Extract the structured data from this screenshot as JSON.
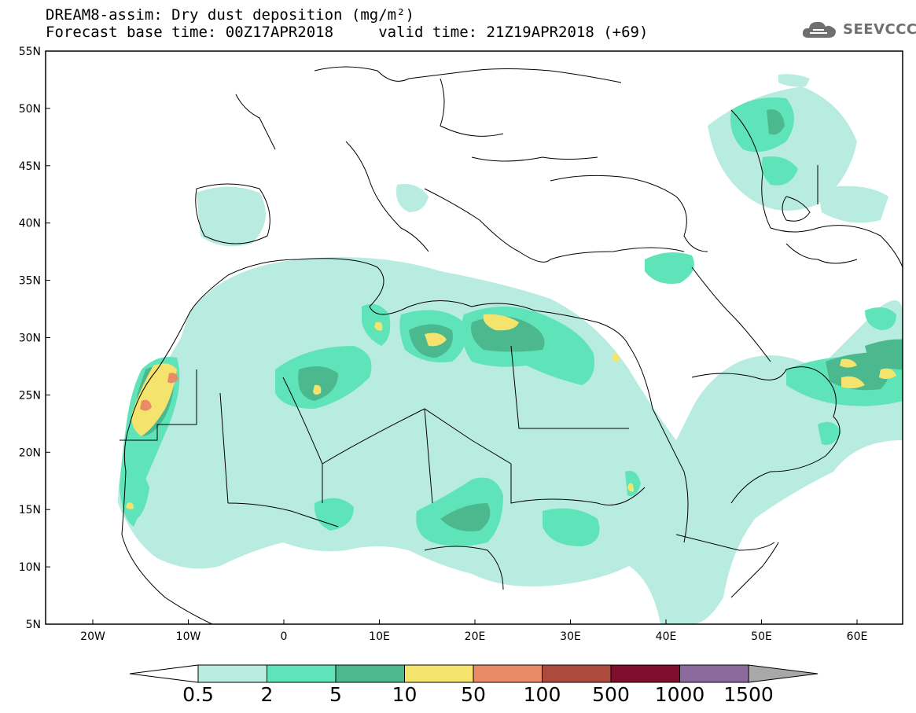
{
  "title": {
    "line1": "DREAM8-assim: Dry dust deposition (mg/m²)",
    "line2": "Forecast base time: 00Z17APR2018     valid time: 21Z19APR2018 (+69)"
  },
  "logo": {
    "text": "SEEVCCC",
    "icon": "cloud-icon"
  },
  "map": {
    "lat_labels": [
      "55N",
      "50N",
      "45N",
      "40N",
      "35N",
      "30N",
      "25N",
      "20N",
      "15N",
      "10N",
      "5N"
    ],
    "lon_labels": [
      "20W",
      "10W",
      "0",
      "10E",
      "20E",
      "30E",
      "40E",
      "50E",
      "60E"
    ]
  },
  "colorbar": {
    "labels": [
      "0.5",
      "2",
      "5",
      "10",
      "50",
      "100",
      "500",
      "1000",
      "1500"
    ],
    "colors": [
      "#ffffff",
      "#b9ece0",
      "#5fe3b8",
      "#4cb88e",
      "#f4e46e",
      "#ea8a66",
      "#ad4a3e",
      "#7f0d2c",
      "#8d6a9e",
      "#a8a8a8"
    ]
  }
}
